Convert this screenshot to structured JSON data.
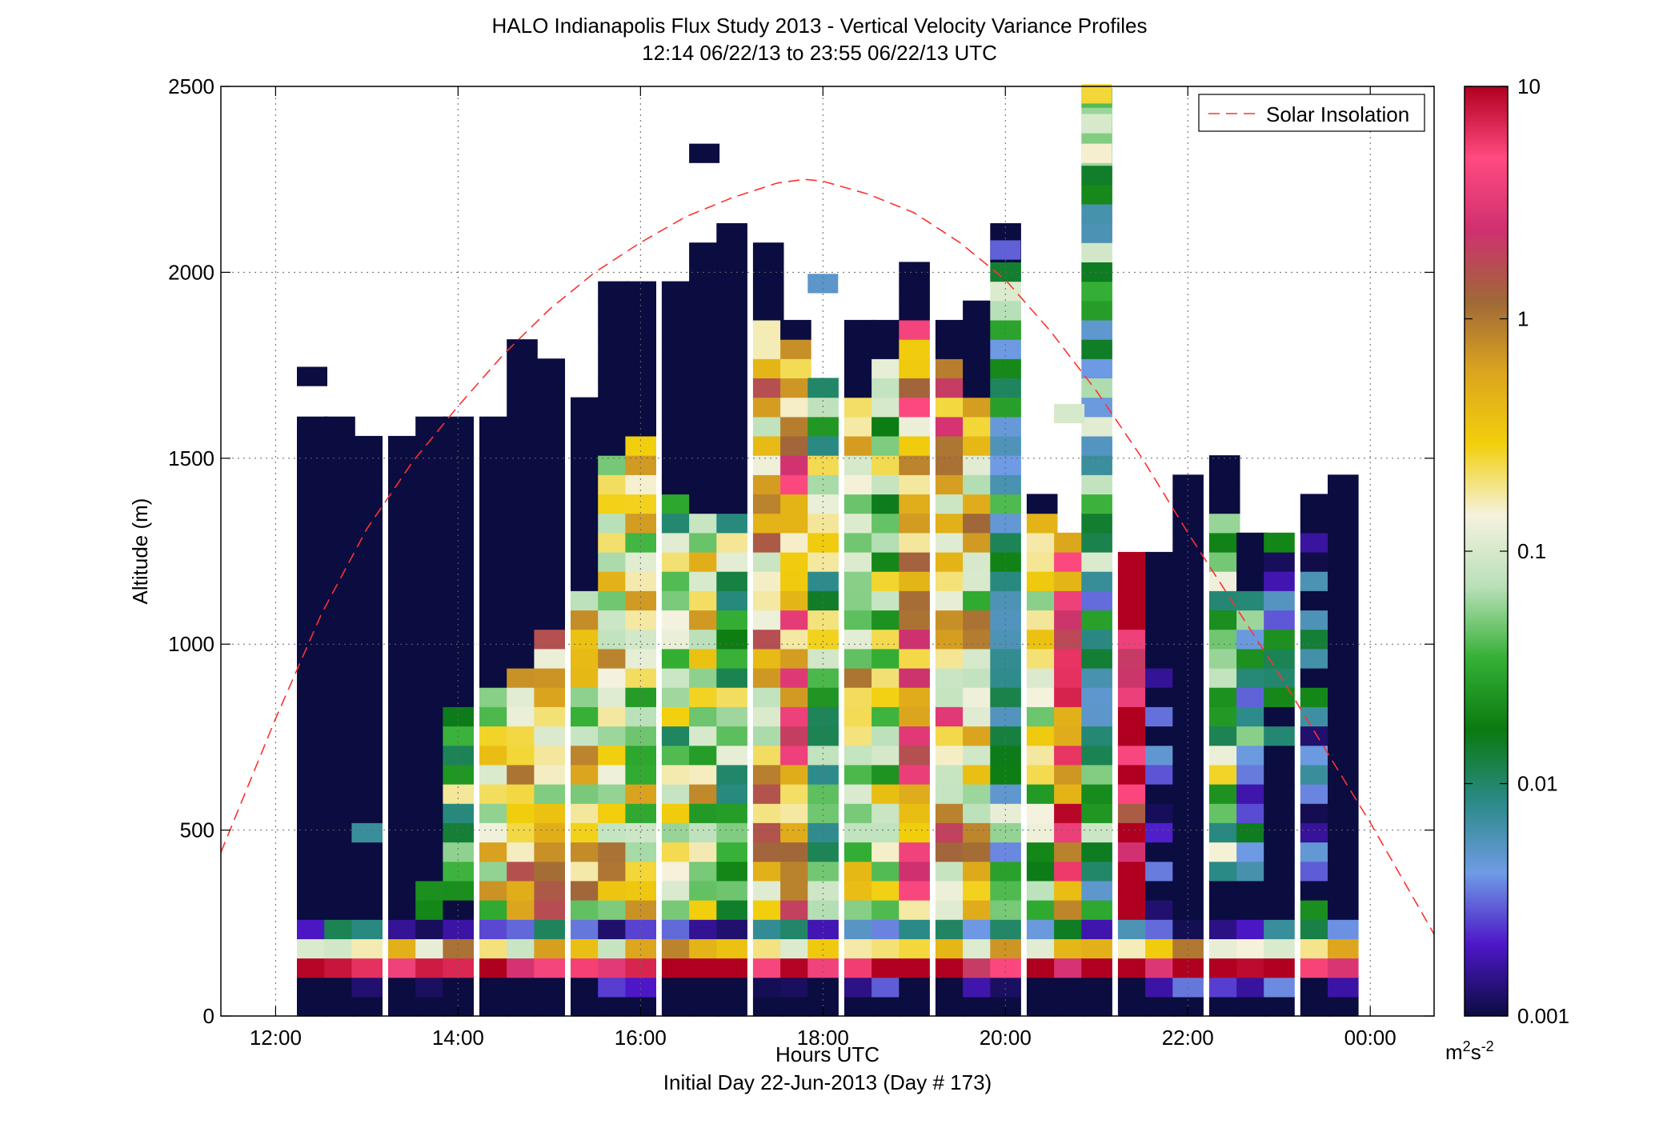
{
  "chart_data": {
    "type": "heatmap",
    "title": "HALO Indianapolis Flux Study 2013 - Vertical Velocity Variance Profiles",
    "subtitle": "12:14 06/22/13 to 23:55 06/22/13  UTC",
    "xlabel": "Hours UTC",
    "xlabel2": "Initial Day 22-Jun-2013 (Day # 173)",
    "ylabel": "Altitude (m)",
    "colorbar_unit_base": "m",
    "colorbar_unit_exp1": "2",
    "colorbar_unit_mid": "s",
    "colorbar_unit_exp2": "-2",
    "xlim": [
      11.4,
      24.7
    ],
    "ylim": [
      0,
      2500
    ],
    "x_ticks": [
      12,
      14,
      16,
      18,
      20,
      22,
      24
    ],
    "x_tick_labels": [
      "12:00",
      "14:00",
      "16:00",
      "18:00",
      "20:00",
      "22:00",
      "00:00"
    ],
    "y_ticks": [
      0,
      500,
      1000,
      1500,
      2000,
      2500
    ],
    "y_tick_labels": [
      "0",
      "500",
      "1000",
      "1500",
      "2000",
      "2500"
    ],
    "grid": true,
    "colorbar": {
      "scale": "log",
      "range": [
        0.001,
        10
      ],
      "ticks": [
        0.001,
        0.01,
        0.1,
        1,
        10
      ],
      "tick_labels": [
        "0.001",
        "0.01",
        "0.1",
        "1",
        "10"
      ],
      "colors": [
        "#0b0c40",
        "#4d17c8",
        "#6f9be4",
        "#2a8a86",
        "#0a7a10",
        "#35b035",
        "#b8e0b8",
        "#f5f2de",
        "#f2cf0c",
        "#dca51e",
        "#a06838",
        "#d03070",
        "#ff4a80",
        "#b00020"
      ]
    },
    "legend": {
      "position": "top-right",
      "entries": [
        "Solar Insolation"
      ]
    },
    "overlay_line": {
      "name": "Solar Insolation",
      "color": "#ff3030",
      "style": "dashed",
      "x": [
        11.4,
        12.0,
        12.5,
        13.0,
        13.5,
        14.0,
        14.5,
        15.0,
        15.5,
        16.0,
        16.5,
        17.0,
        17.5,
        17.8,
        18.0,
        18.5,
        19.0,
        19.5,
        20.0,
        20.5,
        21.0,
        21.5,
        22.0,
        22.5,
        23.0,
        23.5,
        24.0,
        24.7
      ],
      "y": [
        440,
        800,
        1080,
        1310,
        1490,
        1640,
        1780,
        1900,
        2000,
        2080,
        2150,
        2200,
        2240,
        2250,
        2245,
        2210,
        2160,
        2080,
        1980,
        1840,
        1680,
        1500,
        1300,
        1110,
        920,
        720,
        520,
        220
      ]
    },
    "time_step_hours": 0.333,
    "altitude_step_m": 52,
    "profiles": [
      {
        "t": 12.4,
        "top": 1650,
        "blobs": []
      },
      {
        "t": 12.7,
        "top": 1620,
        "blobs": []
      },
      {
        "t": 13.0,
        "top": 1610,
        "blobs": [
          [
            420,
            520,
            0.004
          ]
        ]
      },
      {
        "t": 13.4,
        "top": 1580,
        "blobs": []
      },
      {
        "t": 13.7,
        "top": 1650,
        "blobs": [
          [
            250,
            330,
            0.004
          ]
        ]
      },
      {
        "t": 14.0,
        "top": 1650,
        "blobs": [
          [
            300,
            800,
            0.03
          ]
        ]
      },
      {
        "t": 14.4,
        "top": 1630,
        "blobs": [
          [
            260,
            850,
            0.15
          ]
        ]
      },
      {
        "t": 14.7,
        "top": 1840,
        "blobs": [
          [
            260,
            900,
            0.3
          ]
        ]
      },
      {
        "t": 15.0,
        "top": 1770,
        "blobs": [
          [
            240,
            1000,
            0.3
          ]
        ]
      },
      {
        "t": 15.4,
        "top": 1700,
        "blobs": [
          [
            240,
            1100,
            0.2
          ]
        ]
      },
      {
        "t": 15.7,
        "top": 1980,
        "blobs": [
          [
            260,
            1480,
            0.3
          ]
        ]
      },
      {
        "t": 16.0,
        "top": 1980,
        "blobs": [
          [
            260,
            1520,
            0.15
          ]
        ]
      },
      {
        "t": 16.4,
        "top": 2000,
        "blobs": [
          [
            260,
            1400,
            0.05
          ]
        ]
      },
      {
        "t": 16.7,
        "top": 2120,
        "blobs": [
          [
            240,
            1300,
            0.15
          ]
        ]
      },
      {
        "t": 17.0,
        "top": 2180,
        "blobs": [
          [
            260,
            1300,
            0.05
          ]
        ]
      },
      {
        "t": 17.4,
        "top": 2120,
        "blobs": [
          [
            200,
            1820,
            0.3
          ]
        ]
      },
      {
        "t": 17.7,
        "top": 1900,
        "blobs": [
          [
            200,
            1800,
            0.8
          ]
        ]
      },
      {
        "t": 18.0,
        "top": 1760,
        "blobs": [
          [
            200,
            1720,
            0.05
          ]
        ]
      },
      {
        "t": 18.4,
        "top": 1900,
        "blobs": [
          [
            200,
            1640,
            0.2
          ]
        ]
      },
      {
        "t": 18.7,
        "top": 1920,
        "blobs": [
          [
            200,
            1720,
            0.1
          ]
        ]
      },
      {
        "t": 19.0,
        "top": 2060,
        "blobs": [
          [
            200,
            1820,
            0.8
          ]
        ]
      },
      {
        "t": 19.4,
        "top": 1920,
        "blobs": [
          [
            200,
            1760,
            0.5
          ]
        ]
      },
      {
        "t": 19.7,
        "top": 1960,
        "blobs": [
          [
            200,
            1620,
            0.2
          ]
        ]
      },
      {
        "t": 20.0,
        "top": 2180,
        "blobs": [
          [
            200,
            2000,
            0.02
          ]
        ]
      },
      {
        "t": 20.4,
        "top": 1440,
        "blobs": [
          [
            200,
            1350,
            0.08
          ]
        ]
      },
      {
        "t": 20.7,
        "top": 1340,
        "blobs": [
          [
            200,
            1340,
            2
          ]
        ]
      },
      {
        "t": 21.0,
        "top": 2500,
        "blobs": [
          [
            200,
            2500,
            0.02
          ]
        ]
      },
      {
        "t": 21.4,
        "top": 1260,
        "blobs": [
          [
            200,
            1240,
            8
          ]
        ]
      },
      {
        "t": 21.7,
        "top": 1260,
        "blobs": [
          [
            140,
            1220,
            0.001
          ]
        ]
      },
      {
        "t": 22.0,
        "top": 1480,
        "blobs": []
      },
      {
        "t": 22.4,
        "top": 1520,
        "blobs": [
          [
            360,
            1300,
            0.05
          ]
        ]
      },
      {
        "t": 22.7,
        "top": 1330,
        "blobs": [
          [
            360,
            1100,
            0.01
          ]
        ]
      },
      {
        "t": 23.0,
        "top": 1330,
        "blobs": [
          [
            700,
            1300,
            0.005
          ]
        ]
      },
      {
        "t": 23.4,
        "top": 1410,
        "blobs": [
          [
            150,
            1280,
            0.004
          ]
        ]
      },
      {
        "t": 23.7,
        "top": 1460,
        "blobs": []
      }
    ],
    "near_surface_rows": [
      {
        "alt": 60,
        "value": 0.001
      },
      {
        "alt": 110,
        "value": 8
      },
      {
        "alt": 160,
        "value": 0.3
      },
      {
        "alt": 210,
        "value": 0.004
      }
    ],
    "upper_isolated_cells": [
      {
        "t": 12.4,
        "alt": 1720,
        "value": 0.001
      },
      {
        "t": 16.7,
        "alt": 2320,
        "value": 0.001
      },
      {
        "t": 18.0,
        "alt": 1970,
        "value": 0.005
      },
      {
        "t": 20.0,
        "alt": 2060,
        "value": 0.003
      },
      {
        "t": 21.0,
        "alt": 2480,
        "value": 0.25
      },
      {
        "t": 21.0,
        "alt": 2400,
        "value": 0.1
      },
      {
        "t": 21.0,
        "alt": 2320,
        "value": 0.15
      },
      {
        "t": 20.7,
        "alt": 1620,
        "value": 0.1
      }
    ]
  }
}
